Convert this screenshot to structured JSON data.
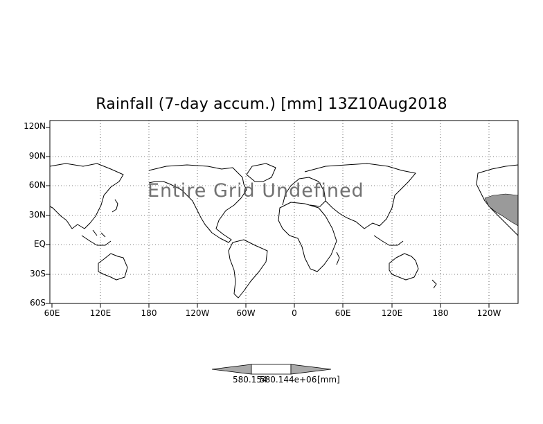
{
  "title": "Rainfall (7-day accum.) [mm] 13Z10Aug2018",
  "watermark": "Entire Grid Undefined",
  "lat_labels": [
    "120N",
    "90N",
    "60N",
    "30N",
    "EQ",
    "30S",
    "60S"
  ],
  "lon_labels": [
    "60E",
    "120E",
    "180",
    "120W",
    "60W",
    "0",
    "60E",
    "120E",
    "180",
    "120W"
  ],
  "colorbar": {
    "label_left": "580.154",
    "label_right": "580.144e+06",
    "units": "[mm]"
  },
  "colors": {
    "land_fill": "#ffffff",
    "shade": "#9a9a9a",
    "grid": "#000000"
  }
}
